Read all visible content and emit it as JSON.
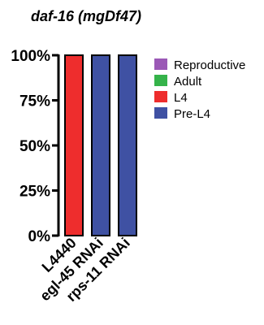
{
  "chart_data": {
    "type": "bar",
    "stacked": true,
    "title": "daf-16 (mgDf47)",
    "xlabel": "",
    "ylabel": "",
    "ylim": [
      0,
      100
    ],
    "yticks": [
      "0%",
      "25%",
      "50%",
      "75%",
      "100%"
    ],
    "ytick_values": [
      0,
      25,
      50,
      75,
      100
    ],
    "categories": [
      "L4440",
      "egl-45 RNAi",
      "rps-11 RNAi"
    ],
    "series": [
      {
        "name": "Pre-L4",
        "color": "#3f51a3",
        "values": [
          0,
          100,
          100
        ]
      },
      {
        "name": "L4",
        "color": "#ee2d2d",
        "values": [
          100,
          0,
          0
        ]
      },
      {
        "name": "Adult",
        "color": "#35b34a",
        "values": [
          0,
          0,
          0
        ]
      },
      {
        "name": "Reproductive",
        "color": "#9b59b6",
        "values": [
          0,
          0,
          0
        ]
      }
    ],
    "legend": {
      "position": "right",
      "entries": [
        "Reproductive",
        "Adult",
        "L4",
        "Pre-L4"
      ]
    },
    "grid": false
  }
}
